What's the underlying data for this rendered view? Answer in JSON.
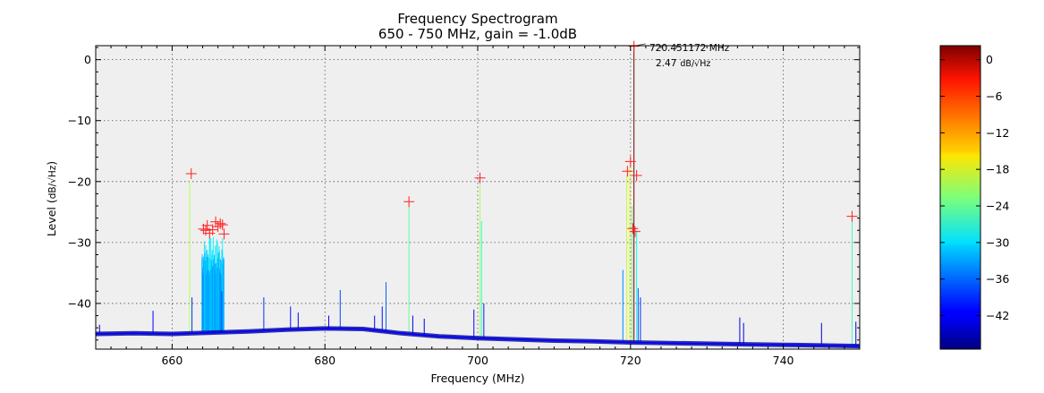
{
  "chart_data": {
    "type": "line",
    "title": "Frequency Spectrogram",
    "subtitle": "650 - 750 MHz, gain = -1.0dB",
    "xlabel": "Frequency (MHz)",
    "ylabel_main": "Level (",
    "ylabel_unit": "dB/√Hz",
    "ylabel_close": ")",
    "xlim": [
      650,
      750
    ],
    "ylim": [
      -47.5,
      2.3
    ],
    "x_ticks": [
      660,
      680,
      700,
      720,
      740
    ],
    "y_ticks": [
      0,
      -10,
      -20,
      -30,
      -40
    ],
    "grid": true,
    "background": "#efefef",
    "noise_floor": [
      [
        650,
        -45.0
      ],
      [
        655,
        -44.9
      ],
      [
        660,
        -45.0
      ],
      [
        665,
        -44.8
      ],
      [
        670,
        -44.6
      ],
      [
        675,
        -44.3
      ],
      [
        680,
        -44.1
      ],
      [
        685,
        -44.2
      ],
      [
        690,
        -44.9
      ],
      [
        695,
        -45.4
      ],
      [
        700,
        -45.7
      ],
      [
        705,
        -45.9
      ],
      [
        710,
        -46.1
      ],
      [
        715,
        -46.2
      ],
      [
        720,
        -46.4
      ],
      [
        725,
        -46.5
      ],
      [
        730,
        -46.6
      ],
      [
        735,
        -46.7
      ],
      [
        740,
        -46.8
      ],
      [
        745,
        -46.9
      ],
      [
        750,
        -47.0
      ]
    ],
    "spikes": [
      [
        650.5,
        -43.5
      ],
      [
        657.5,
        -41.2
      ],
      [
        662.3,
        -20.0
      ],
      [
        662.6,
        -39.0
      ],
      [
        666.5,
        -38.0
      ],
      [
        672.0,
        -39.0
      ],
      [
        675.5,
        -40.5
      ],
      [
        676.5,
        -41.5
      ],
      [
        680.5,
        -42.0
      ],
      [
        682.0,
        -37.8
      ],
      [
        686.5,
        -42.0
      ],
      [
        687.5,
        -40.5
      ],
      [
        688.0,
        -36.5
      ],
      [
        691.0,
        -24.0
      ],
      [
        691.5,
        -42.0
      ],
      [
        693.0,
        -42.5
      ],
      [
        699.5,
        -41.0
      ],
      [
        700.3,
        -20.5
      ],
      [
        700.5,
        -26.5
      ],
      [
        700.8,
        -40.0
      ],
      [
        719.0,
        -34.5
      ],
      [
        719.5,
        -19.0
      ],
      [
        719.9,
        -17.5
      ],
      [
        720.2,
        -24.0
      ],
      [
        720.45,
        2.47
      ],
      [
        720.8,
        -28.0
      ],
      [
        721.0,
        -37.5
      ],
      [
        721.3,
        -39.0
      ],
      [
        734.3,
        -42.3
      ],
      [
        734.8,
        -43.2
      ],
      [
        745.0,
        -43.2
      ],
      [
        749.0,
        -25.8
      ],
      [
        749.5,
        -43.0
      ]
    ],
    "band": {
      "x_start": 663.9,
      "x_end": 666.8,
      "level_from": -44,
      "level_to": -29
    },
    "markers": [
      [
        662.5,
        -18.7
      ],
      [
        691.0,
        -23.3
      ],
      [
        700.3,
        -19.4
      ],
      [
        719.6,
        -18.3
      ],
      [
        720.0,
        -16.7
      ],
      [
        720.8,
        -19.0
      ],
      [
        720.3,
        -27.7
      ],
      [
        720.6,
        -28.2
      ],
      [
        749.0,
        -25.7
      ],
      [
        720.45,
        2.2
      ],
      [
        664.1,
        -27.8
      ],
      [
        664.6,
        -27.2
      ],
      [
        664.9,
        -28.5
      ],
      [
        665.3,
        -27.9
      ],
      [
        665.7,
        -26.6
      ],
      [
        666.0,
        -27.4
      ],
      [
        666.3,
        -26.9
      ],
      [
        666.6,
        -27.1
      ],
      [
        664.4,
        -28.0
      ],
      [
        666.8,
        -28.6
      ]
    ],
    "peak_annotation": {
      "x": 720.451172,
      "y": 2.47,
      "freq_label": "720.451172 MHz",
      "level_label_value": "2.47",
      "level_label_unit": "dB/√Hz"
    },
    "colorbar": {
      "colormap": "jet",
      "range": [
        -47.5,
        2.3
      ],
      "ticks": [
        0,
        -6,
        -12,
        -18,
        -24,
        -30,
        -36,
        -42
      ],
      "tick_labels": [
        "0",
        "−6",
        "−12",
        "−18",
        "−24",
        "−30",
        "−36",
        "−42"
      ]
    },
    "colors": {
      "noise": "#0a0aa8",
      "marker": "#ff2020",
      "grid": "#555555"
    }
  }
}
